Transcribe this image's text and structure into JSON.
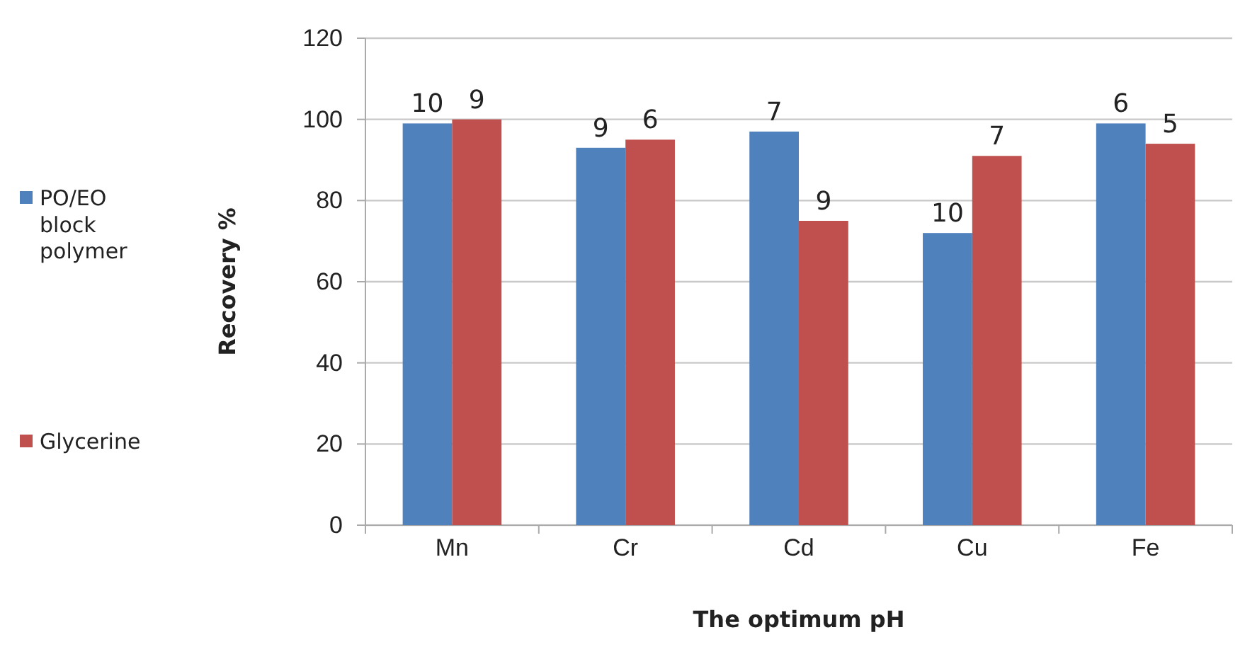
{
  "chart_data": {
    "type": "bar",
    "xlabel": "The optimum pH",
    "ylabel": "Recovery %",
    "categories": [
      "Mn",
      "Cr",
      "Cd",
      "Cu",
      "Fe"
    ],
    "series": [
      {
        "name": "PO/EO block polymer",
        "color": "#4f81bd",
        "values": [
          99,
          93,
          97,
          72,
          99
        ]
      },
      {
        "name": "Glycerine",
        "color": "#c0504d",
        "values": [
          100,
          95,
          75,
          91,
          94
        ]
      }
    ],
    "annotations": [
      {
        "text": "10",
        "x": "Mn",
        "y": 99
      },
      {
        "text": "9",
        "x": "Mn",
        "y": 100
      },
      {
        "text": "9",
        "x": "Cr",
        "y": 93
      },
      {
        "text": "6",
        "x": "Cr",
        "y": 95
      },
      {
        "text": "7",
        "x": "Cd",
        "y": 97
      },
      {
        "text": "9",
        "x": "Cd",
        "y": 75
      },
      {
        "text": "10",
        "x": "Cu",
        "y": 72
      },
      {
        "text": "7",
        "x": "Cu",
        "y": 91
      },
      {
        "text": "6",
        "x": "Fe",
        "y": 99
      },
      {
        "text": "5",
        "x": "Fe",
        "y": 94
      }
    ],
    "ylim": [
      0,
      120
    ],
    "yticks": [
      0,
      20,
      40,
      60,
      80,
      100,
      120
    ],
    "grid": "y",
    "legend": "left"
  }
}
